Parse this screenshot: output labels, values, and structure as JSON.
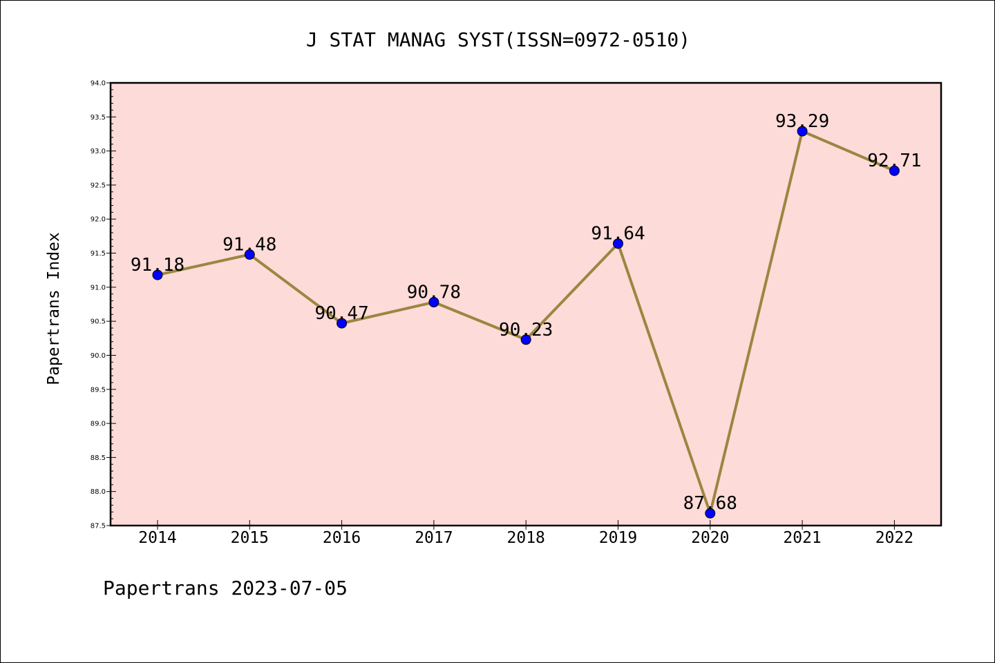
{
  "chart_data": {
    "type": "line",
    "title": "J STAT MANAG SYST(ISSN=0972-0510)",
    "xlabel": "",
    "ylabel": "Papertrans Index",
    "categories": [
      "2014",
      "2015",
      "2016",
      "2017",
      "2018",
      "2019",
      "2020",
      "2021",
      "2022"
    ],
    "values": [
      91.18,
      91.48,
      90.47,
      90.78,
      90.23,
      91.64,
      87.68,
      93.29,
      92.71
    ],
    "value_labels": [
      "91.18",
      "91.48",
      "90.47",
      "90.78",
      "90.23",
      "91.64",
      "87.68",
      "93.29",
      "92.71"
    ],
    "ylim": [
      87.5,
      94.0
    ],
    "yticks": [
      "87.5",
      "88.0",
      "88.5",
      "89.0",
      "89.5",
      "90.0",
      "90.5",
      "91.0",
      "91.5",
      "92.0",
      "92.5",
      "93.0",
      "93.5",
      "94.0"
    ],
    "grid": false,
    "legend": "none",
    "colors": {
      "plot_background": "#fddbd8",
      "line": "#9a8741",
      "marker": "#0000ff"
    }
  },
  "footer": {
    "text": "Papertrans 2023-07-05"
  }
}
